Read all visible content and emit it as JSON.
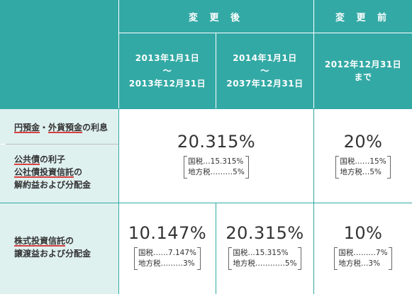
{
  "header": {
    "after_label": "変 更 後",
    "before_label": "変 更 前",
    "period1": {
      "line1": "2013年1月1日",
      "line2": "～",
      "line3": "2013年12月31日"
    },
    "period2": {
      "line1": "2014年1月1日",
      "line2": "～",
      "line3": "2037年12月31日"
    },
    "period3": {
      "line1": "2012年12月31日",
      "line2": "まで"
    }
  },
  "row1": {
    "label_a_part1": "円預金",
    "label_a_sep": "・",
    "label_a_part2": "外貨預金",
    "label_a_suffix": "の利息",
    "label_b_line1_u": "公共債",
    "label_b_line1_rest": "の利子",
    "label_b_line2_u": "公社債投資信託",
    "label_b_line2_rest": "の",
    "label_b_line3": "解約益および分配金",
    "after": {
      "rate": "20.315%",
      "tax1": "国税…15.315%",
      "tax2": "地方税………5%"
    },
    "before": {
      "rate": "20%",
      "tax1": "国税……15%",
      "tax2": "地方税…5%"
    }
  },
  "row2": {
    "label_line1_u": "株式投資信託",
    "label_line1_rest": "の",
    "label_line2": "譲渡益および分配金",
    "p1": {
      "rate": "10.147%",
      "tax1": "国税……7.147%",
      "tax2": "地方税………3%"
    },
    "p2": {
      "rate": "20.315%",
      "tax1": "国税…15.315%",
      "tax2": "地方税…………5%"
    },
    "before": {
      "rate": "10%",
      "tax1": "国税………7%",
      "tax2": "地方税…3%"
    }
  }
}
